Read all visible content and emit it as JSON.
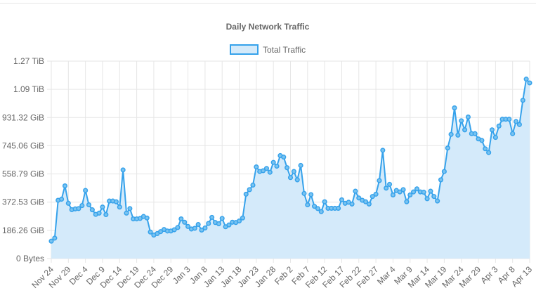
{
  "chart_data": {
    "type": "area",
    "title": "Daily Network Traffic",
    "legend": {
      "label": "Total Traffic",
      "position": "top"
    },
    "colors": {
      "line": "#36a2eb",
      "fill": "#d4eafa",
      "grid": "#e6e6e6",
      "text": "#666666"
    },
    "xlabel": "",
    "ylabel": "",
    "y_ticks": [
      {
        "label": "0 Bytes",
        "value": 0
      },
      {
        "label": "186.26 GiB",
        "value": 186.26
      },
      {
        "label": "372.53 GiB",
        "value": 372.53
      },
      {
        "label": "558.79 GiB",
        "value": 558.79
      },
      {
        "label": "745.06 GiB",
        "value": 745.06
      },
      {
        "label": "931.32 GiB",
        "value": 931.32
      },
      {
        "label": "1.09 TiB",
        "value": 1117.58
      },
      {
        "label": "1.27 TiB",
        "value": 1303.85
      }
    ],
    "y_unit": "GiB",
    "ylim": [
      0,
      1303.85
    ],
    "grid": true,
    "x_tick_labels": [
      "Nov 24",
      "Nov 29",
      "Dec 4",
      "Dec 9",
      "Dec 14",
      "Dec 19",
      "Dec 24",
      "Dec 29",
      "Jan 3",
      "Jan 8",
      "Jan 13",
      "Jan 18",
      "Jan 23",
      "Jan 28",
      "Feb 2",
      "Feb 7",
      "Feb 12",
      "Feb 17",
      "Feb 22",
      "Feb 27",
      "Mar 4",
      "Mar 9",
      "Mar 14",
      "Mar 19",
      "Mar 24",
      "Mar 29",
      "Apr 3",
      "Apr 8",
      "Apr 13"
    ],
    "x_tick_every": 5,
    "series": [
      {
        "name": "Total Traffic",
        "values": [
          115,
          135,
          385,
          392,
          480,
          365,
          323,
          328,
          330,
          350,
          450,
          355,
          322,
          292,
          300,
          340,
          290,
          380,
          380,
          375,
          340,
          585,
          300,
          330,
          262,
          262,
          265,
          278,
          268,
          175,
          155,
          165,
          178,
          192,
          182,
          182,
          190,
          205,
          262,
          240,
          212,
          195,
          200,
          225,
          188,
          202,
          232,
          272,
          238,
          230,
          265,
          210,
          222,
          240,
          238,
          248,
          268,
          425,
          455,
          485,
          605,
          575,
          580,
          595,
          570,
          635,
          610,
          680,
          670,
          600,
          535,
          575,
          520,
          615,
          430,
          355,
          422,
          345,
          330,
          310,
          375,
          332,
          332,
          332,
          332,
          388,
          365,
          372,
          360,
          445,
          400,
          385,
          375,
          360,
          410,
          425,
          515,
          715,
          465,
          490,
          420,
          450,
          440,
          455,
          375,
          420,
          440,
          460,
          440,
          438,
          395,
          445,
          410,
          380,
          520,
          575,
          730,
          820,
          995,
          815,
          910,
          850,
          935,
          825,
          825,
          790,
          780,
          725,
          700,
          850,
          800,
          875,
          920,
          920,
          920,
          825,
          905,
          885,
          1045,
          1185,
          1160
        ]
      }
    ]
  }
}
